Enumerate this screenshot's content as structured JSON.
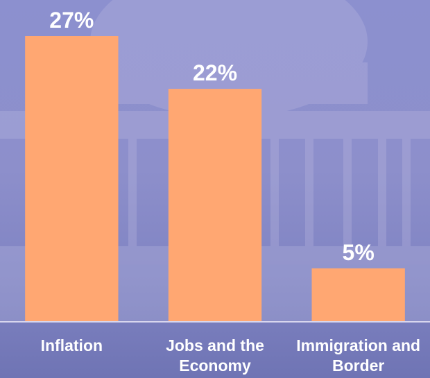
{
  "chart_data": {
    "type": "bar",
    "categories": [
      "Inflation",
      "Jobs and the Economy",
      "Immigration and Border"
    ],
    "values": [
      27,
      22,
      5
    ],
    "value_labels": [
      "27%",
      "22%",
      "5%"
    ],
    "color": "#ffa772"
  }
}
